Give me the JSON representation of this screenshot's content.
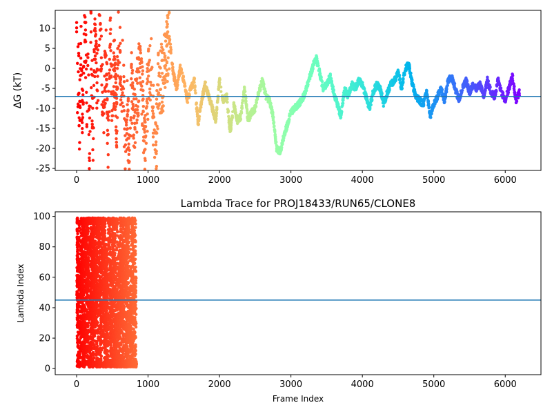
{
  "chart_data": [
    {
      "type": "scatter",
      "title": "",
      "xlabel": "",
      "ylabel": "ΔG (kT)",
      "xlim": [
        -300,
        6500
      ],
      "ylim": [
        -25.5,
        14.5
      ],
      "xticks": [
        0,
        1000,
        2000,
        3000,
        4000,
        5000,
        6000
      ],
      "yticks": [
        -25,
        -20,
        -15,
        -10,
        -5,
        0,
        5,
        10
      ],
      "hline": -7,
      "hline_color": "#1f77b4",
      "colormap": "rainbow (color by frame index)",
      "frame_count": 6200,
      "trace_x": [
        0,
        5,
        10,
        15,
        20,
        30,
        40,
        60,
        80,
        100,
        120,
        140,
        160,
        180,
        200,
        230,
        260,
        290,
        320,
        350,
        380,
        410,
        440,
        470,
        500,
        530,
        560,
        590,
        620,
        650,
        680,
        710,
        740,
        770,
        800,
        850,
        900,
        950,
        1000,
        1050,
        1100,
        1150,
        1200,
        1250,
        1300,
        1350,
        1400,
        1450,
        1500,
        1550,
        1600,
        1650,
        1700,
        1750,
        1800,
        1850,
        1900,
        1950,
        2000,
        2050,
        2100,
        2150,
        2200,
        2250,
        2300,
        2350,
        2400,
        2450,
        2500,
        2550,
        2600,
        2650,
        2700,
        2750,
        2800,
        2850,
        2900,
        2950,
        3000,
        3050,
        3100,
        3150,
        3200,
        3250,
        3300,
        3350,
        3400,
        3450,
        3500,
        3550,
        3600,
        3650,
        3700,
        3750,
        3800,
        3850,
        3900,
        3950,
        4000,
        4050,
        4100,
        4150,
        4200,
        4250,
        4300,
        4350,
        4400,
        4450,
        4500,
        4550,
        4600,
        4650,
        4700,
        4750,
        4800,
        4850,
        4900,
        4950,
        5000,
        5050,
        5100,
        5150,
        5200,
        5250,
        5300,
        5350,
        5400,
        5450,
        5500,
        5550,
        5600,
        5650,
        5700,
        5750,
        5800,
        5850,
        5900,
        5950,
        6000,
        6050,
        6100,
        6150,
        6200
      ],
      "trace_y": [
        10,
        13,
        -10,
        5,
        -4,
        2,
        -17,
        8,
        -13,
        -2,
        13,
        -9,
        3,
        -20,
        7,
        -15,
        11,
        -6,
        14,
        -3,
        -12,
        4,
        -18,
        9,
        -8,
        1,
        -14,
        12,
        -5,
        0,
        -22,
        -10,
        -25,
        -3,
        -15,
        -6,
        2,
        -20,
        -4,
        1,
        -24,
        -2,
        -3,
        3,
        8,
        -1,
        -5,
        0,
        -3,
        -8,
        -5,
        -3,
        -14,
        -8,
        -4,
        -7,
        -10,
        -13,
        -3,
        -8,
        -7,
        -16,
        -9,
        -13,
        -12,
        -5,
        -13,
        -11,
        -10,
        -6,
        -3,
        -7,
        -8,
        -12,
        -20,
        -21,
        -17,
        -14,
        -11,
        -10,
        -9,
        -8,
        -6,
        -3,
        0,
        3,
        -1,
        -5,
        -4,
        -2,
        -6,
        -9,
        -12,
        -5,
        -7,
        -4,
        -5,
        -3,
        -4,
        -7,
        -10,
        -6,
        -4,
        -5,
        -9,
        -6,
        -4,
        -3,
        -1,
        -5,
        0,
        1,
        -4,
        -7,
        -8,
        -9,
        -6,
        -12,
        -9,
        -7,
        -5,
        -8,
        -3,
        -2,
        -5,
        -8,
        -5,
        -3,
        -6,
        -4,
        -5,
        -4,
        -7,
        -3,
        -6,
        -7,
        -3,
        -6,
        -8,
        -5,
        -2,
        -8,
        -6
      ],
      "point_count": 3200
    },
    {
      "type": "scatter",
      "title": "Lambda Trace for PROJ18433/RUN65/CLONE8",
      "xlabel": "Frame Index",
      "ylabel": "Lambda Index",
      "xlim": [
        -300,
        6500
      ],
      "ylim": [
        -4,
        103
      ],
      "xticks": [
        0,
        1000,
        2000,
        3000,
        4000,
        5000,
        6000
      ],
      "yticks": [
        0,
        20,
        40,
        60,
        80,
        100
      ],
      "hline": 45,
      "hline_color": "#1f77b4",
      "colormap": "rainbow (color by frame index)",
      "value_range": [
        1,
        99
      ],
      "point_count": 5200
    }
  ]
}
